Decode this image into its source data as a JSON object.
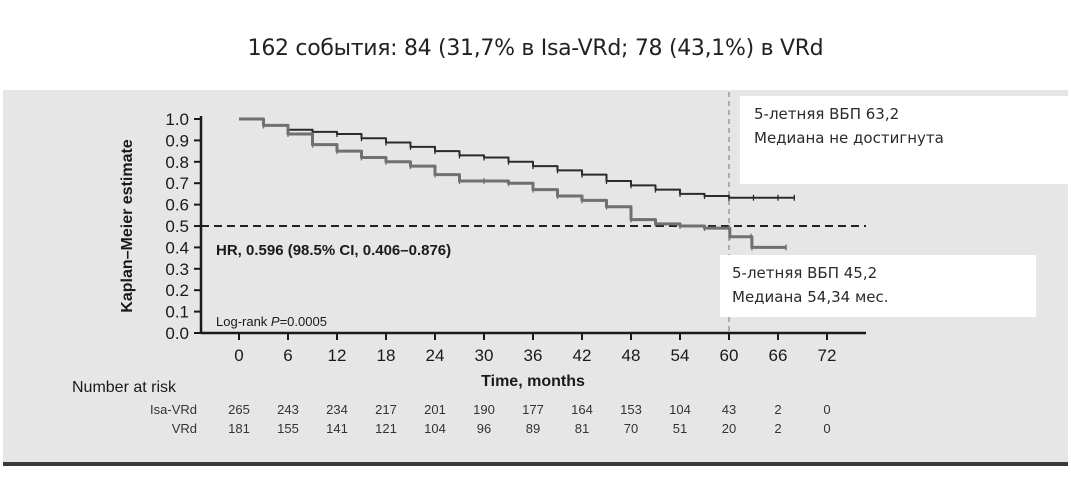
{
  "headline": "162 события: 84 (31,7% в Isa-VRd; 78 (43,1%) в VRd",
  "callouts": {
    "isa_vrd": {
      "line1": "5-летняя ВБП 63,2",
      "line2": "Медиана не достигнута"
    },
    "vrd": {
      "line1": "5-летняя ВБП 45,2",
      "line2": "Медиана 54,34 мес."
    }
  },
  "colors": {
    "isa_vrd": "#2b2b2b",
    "vrd": "#707070",
    "panel": "#e6e6e6"
  },
  "chart_data": {
    "type": "line",
    "title": "",
    "xlabel": "Time, months",
    "ylabel": "Kaplan–Meier estimate",
    "xlim": [
      0,
      72
    ],
    "ylim": [
      0,
      1.0
    ],
    "x_ticks": [
      0,
      6,
      12,
      18,
      24,
      30,
      36,
      42,
      48,
      54,
      60,
      66,
      72
    ],
    "y_ticks": [
      "0.0",
      "0.1",
      "0.2",
      "0.3",
      "0.4",
      "0.5",
      "0.6",
      "0.7",
      "0.8",
      "0.9",
      "1.0"
    ],
    "reference_lines": [
      {
        "type": "horizontal",
        "value": 0.5,
        "style": "dashed"
      },
      {
        "type": "vertical",
        "value": 60,
        "style": "dashed"
      }
    ],
    "annotations": [
      "HR, 0.596 (98.5% CI, 0.406–0.876)",
      "Log-rank P=0.0005"
    ],
    "series": [
      {
        "name": "Isa-VRd",
        "step": true,
        "x": [
          0,
          3,
          6,
          9,
          12,
          15,
          18,
          21,
          24,
          27,
          30,
          33,
          36,
          39,
          42,
          45,
          48,
          51,
          54,
          57,
          60,
          63,
          66,
          68
        ],
        "y": [
          1.0,
          0.97,
          0.95,
          0.94,
          0.93,
          0.91,
          0.89,
          0.87,
          0.85,
          0.83,
          0.82,
          0.8,
          0.78,
          0.76,
          0.74,
          0.71,
          0.69,
          0.67,
          0.65,
          0.64,
          0.632,
          0.632,
          0.632,
          0.632
        ]
      },
      {
        "name": "VRd",
        "step": true,
        "x": [
          0,
          3,
          6,
          9,
          12,
          15,
          18,
          21,
          24,
          27,
          30,
          33,
          36,
          39,
          42,
          45,
          48,
          51,
          54,
          57,
          60,
          60.1,
          62.7,
          62.8,
          67
        ],
        "y": [
          1.0,
          0.97,
          0.93,
          0.88,
          0.85,
          0.82,
          0.8,
          0.78,
          0.74,
          0.71,
          0.71,
          0.7,
          0.67,
          0.64,
          0.62,
          0.59,
          0.53,
          0.51,
          0.5,
          0.49,
          0.49,
          0.45,
          0.45,
          0.4,
          0.4
        ]
      }
    ],
    "number_at_risk": {
      "label": "Number at risk",
      "times": [
        0,
        6,
        12,
        18,
        24,
        30,
        36,
        42,
        48,
        54,
        60,
        66,
        72
      ],
      "rows": [
        {
          "name": "Isa-VRd",
          "values": [
            265,
            243,
            234,
            217,
            201,
            190,
            177,
            164,
            153,
            104,
            43,
            2,
            0
          ]
        },
        {
          "name": "VRd",
          "values": [
            181,
            155,
            141,
            121,
            104,
            96,
            89,
            81,
            70,
            51,
            20,
            2,
            0
          ]
        }
      ]
    }
  }
}
